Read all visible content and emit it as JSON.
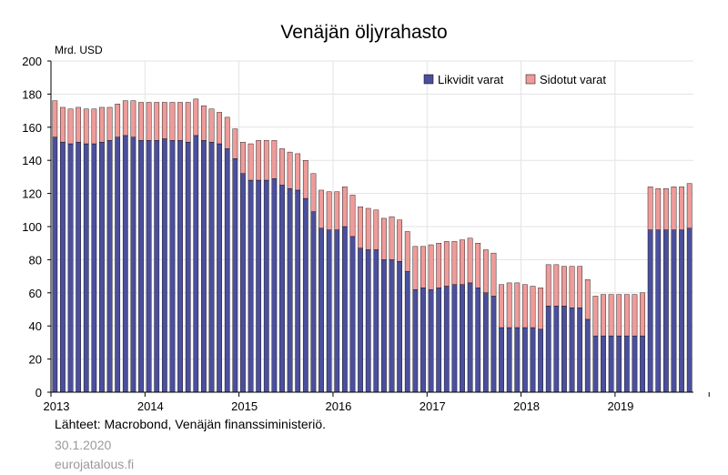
{
  "chart_data": {
    "type": "bar",
    "stacked": true,
    "title": "Venäjän öljyrahasto",
    "ylabel": "Mrd. USD",
    "xlabel": "",
    "ylim": [
      0,
      200
    ],
    "yticks": [
      0,
      20,
      40,
      60,
      80,
      100,
      120,
      140,
      160,
      180,
      200
    ],
    "xtick_labels": [
      "2013",
      "2014",
      "2015",
      "2016",
      "2017",
      "2018",
      "2019"
    ],
    "start": "2013-01",
    "end": "2019-12",
    "legend_position": "top-right",
    "series": [
      {
        "name": "Likvidit varat",
        "color": "#4b4f9c",
        "values": [
          154,
          151,
          150,
          151,
          150,
          150,
          151,
          152,
          154,
          155,
          154,
          152,
          152,
          152,
          153,
          152,
          152,
          151,
          155,
          152,
          151,
          150,
          147,
          141,
          132,
          128,
          128,
          128,
          129,
          125,
          123,
          122,
          117,
          109,
          99,
          98,
          98,
          100,
          94,
          87,
          86,
          86,
          80,
          80,
          79,
          73,
          62,
          63,
          62,
          63,
          64,
          65,
          65,
          66,
          63,
          60,
          58,
          39,
          39,
          39,
          39,
          39,
          38,
          52,
          52,
          52,
          51,
          51,
          44,
          34,
          34,
          34,
          34,
          34,
          34,
          34,
          98,
          98,
          98,
          98,
          98,
          99
        ]
      },
      {
        "name": "Sidotut varat",
        "color": "#ee9b99",
        "values": [
          22,
          21,
          21,
          21,
          21,
          21,
          21,
          20,
          20,
          21,
          22,
          23,
          23,
          23,
          22,
          23,
          23,
          24,
          22,
          21,
          20,
          19,
          19,
          18,
          19,
          22,
          24,
          24,
          23,
          22,
          22,
          22,
          23,
          23,
          23,
          23,
          23,
          24,
          25,
          25,
          25,
          24,
          25,
          26,
          25,
          24,
          26,
          25,
          27,
          27,
          27,
          26,
          27,
          27,
          27,
          26,
          26,
          26,
          27,
          27,
          26,
          25,
          25,
          25,
          25,
          24,
          25,
          25,
          24,
          24,
          25,
          25,
          25,
          25,
          25,
          26,
          26,
          25,
          25,
          26,
          26,
          27
        ]
      }
    ]
  },
  "footer": {
    "source": "Lähteet: Macrobond, Venäjän finanssiministeriö.",
    "date": "30.1.2020",
    "site": "eurojatalous.fi"
  }
}
